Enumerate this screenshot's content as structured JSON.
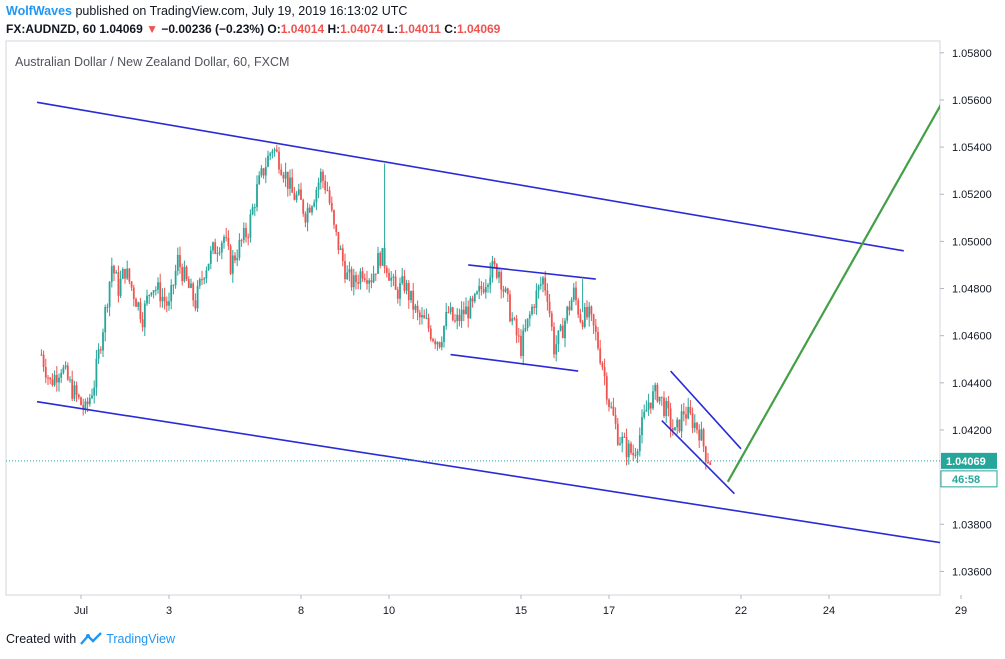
{
  "header": {
    "author": "WolfWaves",
    "published_text": " published on TradingView.com, July 19, 2019 16:13:02 UTC",
    "symbol": "FX:AUDNZD, 60",
    "last": "1.04069",
    "change_arrow": "▼",
    "change": "−0.00236 (−0.23%)",
    "o_label": "O:",
    "o": "1.04014",
    "h_label": "H:",
    "h": "1.04074",
    "l_label": "L:",
    "l": "1.04011",
    "c_label": "C:",
    "c": "1.04069"
  },
  "footer": {
    "created_with": "Created with",
    "brand": "TradingView",
    "logo_icon": "tradingview-logo-icon"
  },
  "chart_data": {
    "type": "candlestick",
    "title": "Australian Dollar / New Zealand Dollar, 60, FXCM",
    "ylim": [
      1.035,
      1.0585
    ],
    "y_ticks": [
      "1.03600",
      "1.03800",
      "1.04000",
      "1.04200",
      "1.04400",
      "1.04600",
      "1.04800",
      "1.05000",
      "1.05200",
      "1.05400",
      "1.05600",
      "1.05800"
    ],
    "x_ticks": [
      {
        "label": "Jul",
        "day": 1
      },
      {
        "label": "3",
        "day": 3
      },
      {
        "label": "8",
        "day": 6
      },
      {
        "label": "10",
        "day": 8
      },
      {
        "label": "15",
        "day": 11
      },
      {
        "label": "17",
        "day": 13
      },
      {
        "label": "22",
        "day": 16
      },
      {
        "label": "24",
        "day": 18
      },
      {
        "label": "29",
        "day": 21
      }
    ],
    "last_price_label": "1.04069",
    "countdown_label": "46:58",
    "last_price": 1.04069,
    "colors": {
      "up": "#26a69a",
      "down": "#ef5350",
      "channel": "#2a2ad6",
      "projection": "#43a047",
      "axis_text": "#131722",
      "grid": "#e0e3eb",
      "price_tag": "#26a69a"
    },
    "price_path": [
      [
        0.1,
        1.0452
      ],
      [
        0.3,
        1.044
      ],
      [
        0.55,
        1.0447
      ],
      [
        0.8,
        1.0437
      ],
      [
        1.1,
        1.0428
      ],
      [
        1.3,
        1.044
      ],
      [
        1.55,
        1.047
      ],
      [
        1.7,
        1.049
      ],
      [
        1.85,
        1.048
      ],
      [
        2.0,
        1.0488
      ],
      [
        2.2,
        1.0478
      ],
      [
        2.4,
        1.0468
      ],
      [
        2.6,
        1.0482
      ],
      [
        2.8,
        1.0478
      ],
      [
        3.0,
        1.0472
      ],
      [
        3.2,
        1.0492
      ],
      [
        3.45,
        1.048
      ],
      [
        3.6,
        1.0474
      ],
      [
        3.8,
        1.0488
      ],
      [
        4.0,
        1.0496
      ],
      [
        4.25,
        1.0502
      ],
      [
        4.4,
        1.049
      ],
      [
        4.6,
        1.0498
      ],
      [
        4.8,
        1.0505
      ],
      [
        5.0,
        1.0522
      ],
      [
        5.2,
        1.0533
      ],
      [
        5.35,
        1.054
      ],
      [
        5.5,
        1.0535
      ],
      [
        5.65,
        1.0528
      ],
      [
        5.8,
        1.052
      ],
      [
        5.95,
        1.0518
      ],
      [
        6.1,
        1.0512
      ],
      [
        6.3,
        1.052
      ],
      [
        6.45,
        1.0528
      ],
      [
        6.6,
        1.0522
      ],
      [
        6.75,
        1.0505
      ],
      [
        6.9,
        1.0495
      ],
      [
        7.05,
        1.0485
      ],
      [
        7.2,
        1.0482
      ],
      [
        7.4,
        1.0488
      ],
      [
        7.6,
        1.0485
      ],
      [
        7.8,
        1.0494
      ],
      [
        7.95,
        1.049
      ],
      [
        8.15,
        1.0478
      ],
      [
        8.35,
        1.0482
      ],
      [
        8.5,
        1.0475
      ],
      [
        8.65,
        1.0468
      ],
      [
        8.85,
        1.0465
      ],
      [
        9.0,
        1.046
      ],
      [
        9.15,
        1.0458
      ],
      [
        9.35,
        1.047
      ],
      [
        9.5,
        1.0465
      ],
      [
        9.7,
        1.047
      ],
      [
        9.9,
        1.0472
      ],
      [
        10.1,
        1.048
      ],
      [
        10.3,
        1.0488
      ],
      [
        10.5,
        1.0488
      ],
      [
        10.6,
        1.048
      ],
      [
        10.75,
        1.047
      ],
      [
        10.9,
        1.046
      ],
      [
        11.0,
        1.0455
      ],
      [
        11.15,
        1.0465
      ],
      [
        11.3,
        1.0475
      ],
      [
        11.5,
        1.0484
      ],
      [
        11.6,
        1.0478
      ],
      [
        11.75,
        1.0455
      ],
      [
        11.9,
        1.046
      ],
      [
        12.05,
        1.047
      ],
      [
        12.2,
        1.0478
      ],
      [
        12.35,
        1.0468
      ],
      [
        12.55,
        1.0468
      ],
      [
        12.7,
        1.046
      ],
      [
        12.85,
        1.0448
      ],
      [
        13.0,
        1.0432
      ],
      [
        13.2,
        1.0418
      ],
      [
        13.4,
        1.0412
      ],
      [
        13.55,
        1.041
      ],
      [
        13.7,
        1.0418
      ],
      [
        13.9,
        1.0432
      ],
      [
        14.1,
        1.0436
      ],
      [
        14.3,
        1.0428
      ],
      [
        14.5,
        1.0418
      ],
      [
        14.7,
        1.0428
      ],
      [
        14.9,
        1.0424
      ],
      [
        15.05,
        1.042
      ],
      [
        15.2,
        1.041
      ],
      [
        15.3,
        1.0407
      ]
    ],
    "spikes": [
      {
        "day": 7.9,
        "high": 1.0533,
        "low": 1.049
      },
      {
        "day": 10.3,
        "high": 1.0491,
        "low": 1.0478
      },
      {
        "day": 12.4,
        "high": 1.0484,
        "low": 1.047
      }
    ],
    "lines": [
      {
        "role": "channel-upper",
        "x1": 0.0,
        "y1": 1.0559,
        "x2": 19.7,
        "y2": 1.0496,
        "color": "#2a2ad6"
      },
      {
        "role": "channel-lower",
        "x1": 0.0,
        "y1": 1.0432,
        "x2": 20.6,
        "y2": 1.0372,
        "color": "#2a2ad6"
      },
      {
        "role": "flag-upper",
        "x1": 9.8,
        "y1": 1.049,
        "x2": 12.7,
        "y2": 1.0484,
        "color": "#2a2ad6"
      },
      {
        "role": "flag-lower",
        "x1": 9.4,
        "y1": 1.0452,
        "x2": 12.3,
        "y2": 1.0445,
        "color": "#2a2ad6"
      },
      {
        "role": "wedge-upper",
        "x1": 14.4,
        "y1": 1.0445,
        "x2": 16.0,
        "y2": 1.0412,
        "color": "#2a2ad6"
      },
      {
        "role": "wedge-lower",
        "x1": 14.2,
        "y1": 1.0424,
        "x2": 15.85,
        "y2": 1.0393,
        "color": "#2a2ad6"
      },
      {
        "role": "projection",
        "x1": 15.7,
        "y1": 1.0398,
        "x2": 21.3,
        "y2": 1.0583,
        "color": "#43a047"
      }
    ]
  }
}
